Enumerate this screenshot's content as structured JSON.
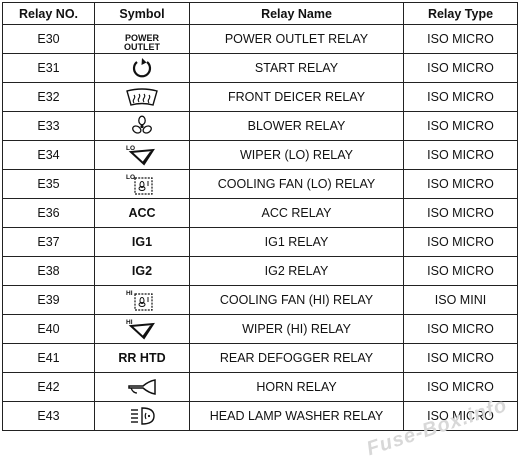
{
  "header": {
    "relay_no": "Relay NO.",
    "symbol": "Symbol",
    "relay_name": "Relay Name",
    "relay_type": "Relay Type"
  },
  "rows": [
    {
      "no": "E30",
      "symbol_text": "POWER\nOUTLET",
      "symbol_icon": "power-outlet-text",
      "name": "POWER OUTLET RELAY",
      "type": "ISO MICRO"
    },
    {
      "no": "E31",
      "symbol_text": "",
      "symbol_icon": "start-icon",
      "name": "START RELAY",
      "type": "ISO MICRO"
    },
    {
      "no": "E32",
      "symbol_text": "",
      "symbol_icon": "front-deicer-icon",
      "name": "FRONT DEICER RELAY",
      "type": "ISO MICRO"
    },
    {
      "no": "E33",
      "symbol_text": "",
      "symbol_icon": "blower-fan-icon",
      "name": "BLOWER RELAY",
      "type": "ISO MICRO"
    },
    {
      "no": "E34",
      "symbol_text": "LO",
      "symbol_icon": "wiper-lo-icon",
      "name": "WIPER (LO) RELAY",
      "type": "ISO MICRO"
    },
    {
      "no": "E35",
      "symbol_text": "LO",
      "symbol_icon": "cooling-fan-lo-icon",
      "name": "COOLING FAN (LO) RELAY",
      "type": "ISO MICRO"
    },
    {
      "no": "E36",
      "symbol_text": "ACC",
      "symbol_icon": "",
      "name": "ACC RELAY",
      "type": "ISO MICRO"
    },
    {
      "no": "E37",
      "symbol_text": "IG1",
      "symbol_icon": "",
      "name": "IG1 RELAY",
      "type": "ISO MICRO"
    },
    {
      "no": "E38",
      "symbol_text": "IG2",
      "symbol_icon": "",
      "name": "IG2 RELAY",
      "type": "ISO MICRO"
    },
    {
      "no": "E39",
      "symbol_text": "HI",
      "symbol_icon": "cooling-fan-hi-icon",
      "name": "COOLING FAN (HI) RELAY",
      "type": "ISO MINI"
    },
    {
      "no": "E40",
      "symbol_text": "HI",
      "symbol_icon": "wiper-hi-icon",
      "name": "WIPER (HI) RELAY",
      "type": "ISO MICRO"
    },
    {
      "no": "E41",
      "symbol_text": "RR HTD",
      "symbol_icon": "",
      "name": "REAR DEFOGGER RELAY",
      "type": "ISO MICRO"
    },
    {
      "no": "E42",
      "symbol_text": "",
      "symbol_icon": "horn-icon",
      "name": "HORN RELAY",
      "type": "ISO MICRO"
    },
    {
      "no": "E43",
      "symbol_text": "",
      "symbol_icon": "head-lamp-washer-icon",
      "name": "HEAD LAMP WASHER RELAY",
      "type": "ISO MICRO"
    }
  ],
  "watermark": "Fuse-Box.info"
}
